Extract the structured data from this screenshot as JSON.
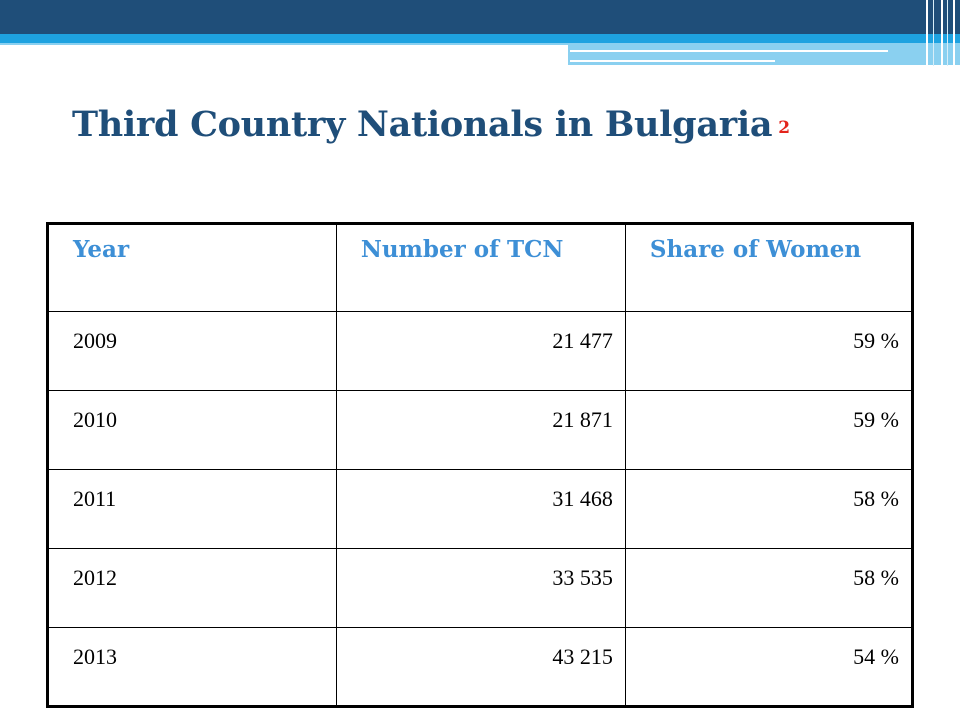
{
  "title": {
    "text": "Third Country Nationals in Bulgaria",
    "slide_number": "2"
  },
  "colors": {
    "title": "#1f4e79",
    "slide_number": "#e3241b",
    "header_text": "#3d8fd6",
    "banner_dark": "#1f4e79",
    "banner_light": "#1ea2e0"
  },
  "table": {
    "headers": [
      "Year",
      "Number of TCN",
      "Share of Women"
    ],
    "rows": [
      [
        "2009",
        "21 477",
        "59 %"
      ],
      [
        "2010",
        "21 871",
        "59 %"
      ],
      [
        "2011",
        "31 468",
        "58 %"
      ],
      [
        "2012",
        "33 535",
        "58 %"
      ],
      [
        "2013",
        "43 215",
        "54 %"
      ]
    ]
  }
}
